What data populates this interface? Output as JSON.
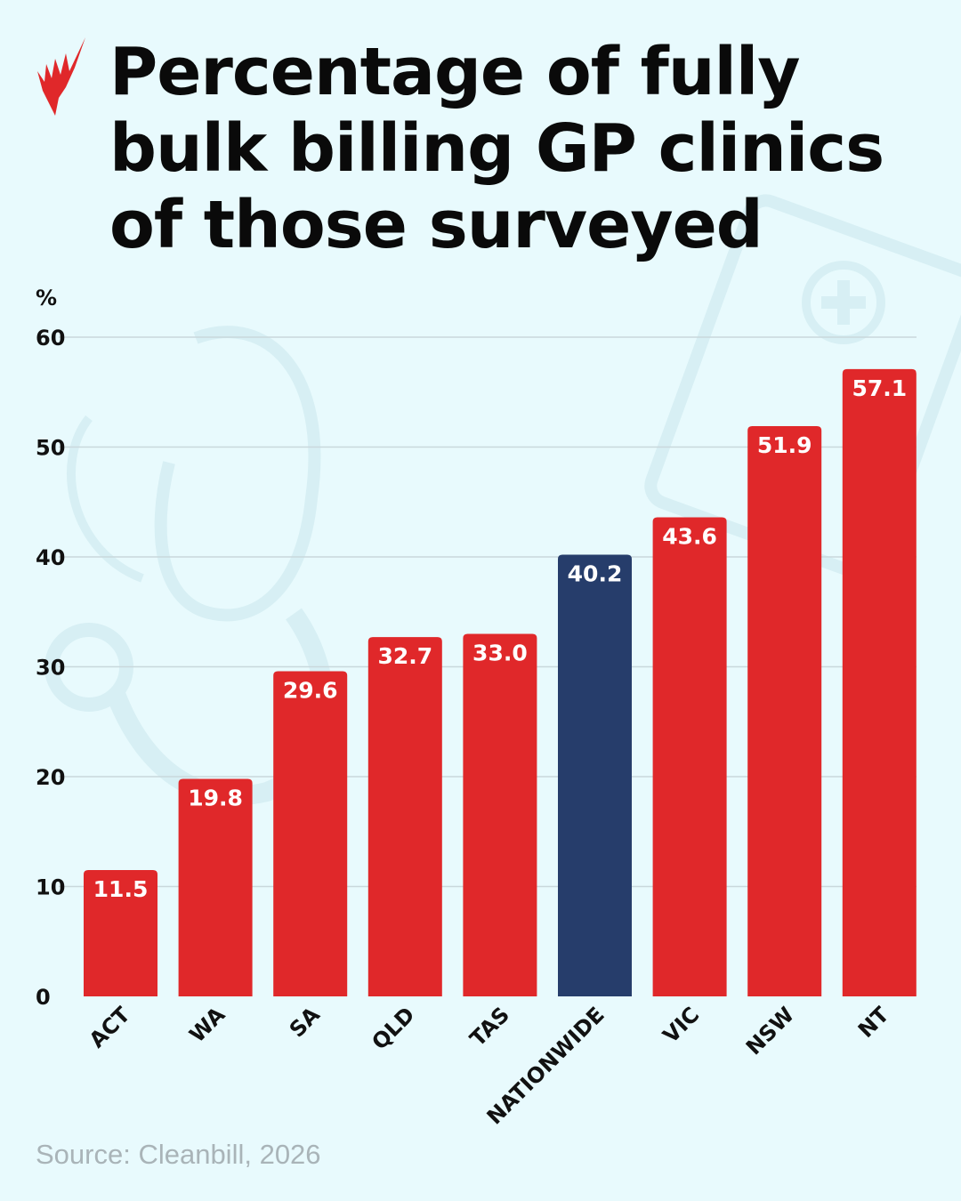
{
  "title": "Percentage of fully bulk billing GP clinics of those surveyed",
  "source": "Source: Cleanbill, 2026",
  "logo": "SBS",
  "colors": {
    "state": "#e0282a",
    "nationwide": "#263d6b",
    "background": "#e8fafd",
    "grid": "#c9d8dc"
  },
  "chart_data": {
    "type": "bar",
    "title": "Percentage of fully bulk billing GP clinics of those surveyed",
    "ylabel": "%",
    "xlabel": "",
    "ylim": [
      0,
      60
    ],
    "yticks": [
      0,
      10,
      20,
      30,
      40,
      50,
      60
    ],
    "grid": true,
    "categories": [
      "ACT",
      "WA",
      "SA",
      "QLD",
      "TAS",
      "NATIONWIDE",
      "VIC",
      "NSW",
      "NT"
    ],
    "values": [
      11.5,
      19.8,
      29.6,
      32.7,
      33.0,
      40.2,
      43.6,
      51.9,
      57.1
    ],
    "value_labels": [
      "11.5",
      "19.8",
      "29.6",
      "32.7",
      "33.0",
      "40.2",
      "43.6",
      "51.9",
      "57.1"
    ],
    "highlight": "NATIONWIDE"
  }
}
